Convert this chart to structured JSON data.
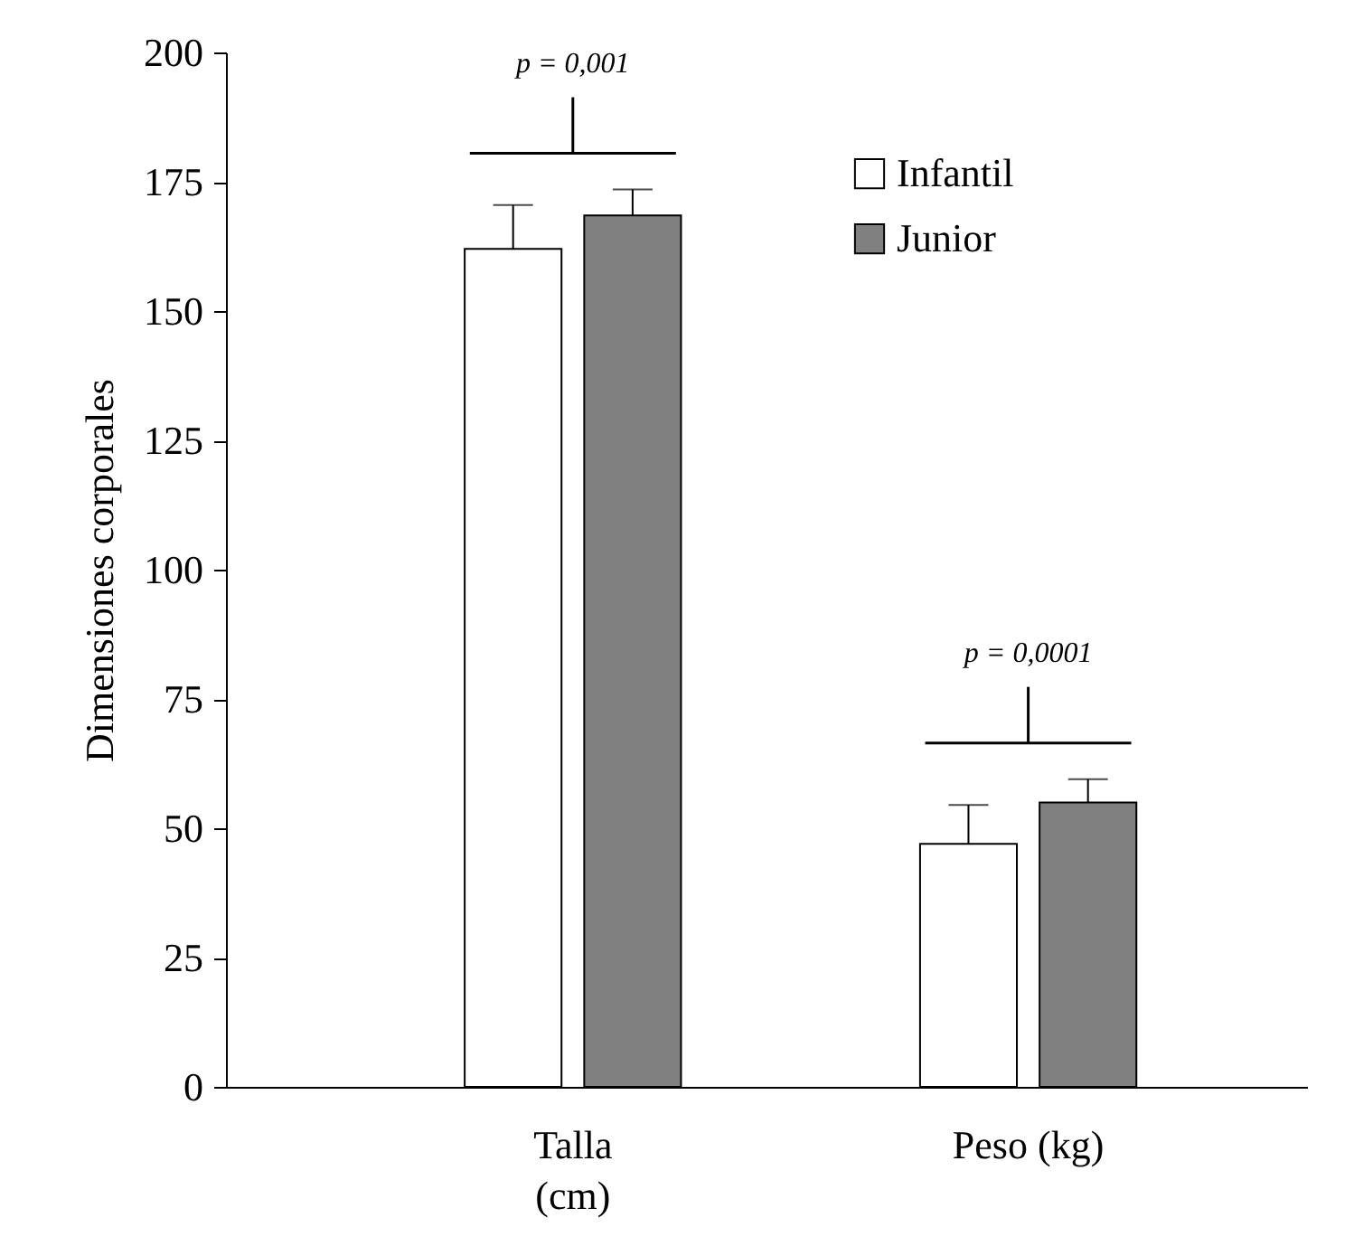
{
  "chart_data": {
    "type": "bar",
    "ylabel": "Dimensiones corporales",
    "categories": [
      "Talla\n(cm)",
      "Peso (kg)"
    ],
    "series": [
      {
        "name": "Infantil",
        "color": "#ffffff",
        "values": [
          162,
          47
        ],
        "errors": [
          [
            162,
            170.5
          ],
          [
            47,
            54.5
          ]
        ]
      },
      {
        "name": "Junior",
        "color": "#808080",
        "values": [
          168.5,
          55
        ],
        "errors": [
          [
            168.5,
            173.5
          ],
          [
            55,
            59.5
          ]
        ]
      }
    ],
    "ylim": [
      0,
      200
    ],
    "yticks": [
      0,
      25,
      50,
      75,
      100,
      125,
      150,
      175,
      200
    ],
    "legend": "top right",
    "grid": false,
    "annotations": [
      "p = 0,001",
      "p = 0,0001"
    ]
  }
}
